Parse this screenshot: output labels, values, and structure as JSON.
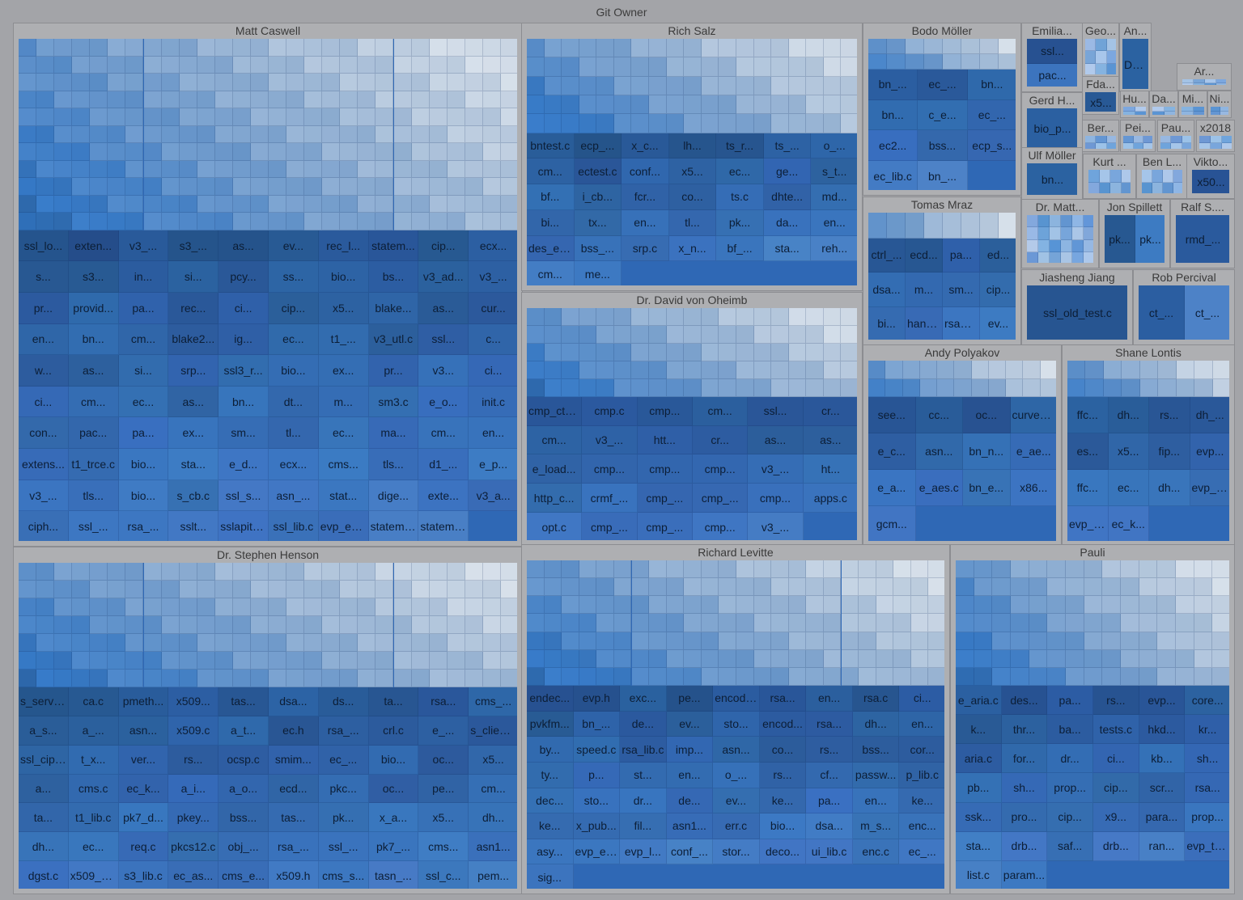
{
  "chart_data": {
    "type": "treemap",
    "title": "Git Owner",
    "groups": [
      {
        "name": "Matt Caswell",
        "files": [
          "ssl_lo...",
          "exten...",
          "v3_...",
          "s3_...",
          "as...",
          "ev...",
          "rec_l...",
          "statem...",
          "cip...",
          "ecx...",
          "s...",
          "s3...",
          "in...",
          "si...",
          "pcy...",
          "ss...",
          "bio...",
          "bs...",
          "v3_ad...",
          "v3_...",
          "pr...",
          "provid...",
          "pa...",
          "rec...",
          "ci...",
          "cip...",
          "x5...",
          "blake...",
          "as...",
          "cur...",
          "en...",
          "bn...",
          "cm...",
          "blake2...",
          "ig...",
          "ec...",
          "t1_...",
          "v3_utl.c",
          "ssl...",
          "c...",
          "w...",
          "as...",
          "si...",
          "srp...",
          "ssl3_r...",
          "bio...",
          "ex...",
          "pr...",
          "v3...",
          "ci...",
          "ci...",
          "cm...",
          "ec...",
          "as...",
          "bn...",
          "dt...",
          "m...",
          "sm3.c",
          "e_o...",
          "init.c",
          "con...",
          "pac...",
          "pa...",
          "ex...",
          "sm...",
          "tl...",
          "ec...",
          "ma...",
          "cm...",
          "en...",
          "extens...",
          "t1_trce.c",
          "bio...",
          "sta...",
          "e_d...",
          "ecx...",
          "cms...",
          "tls...",
          "d1_...",
          "e_p...",
          "v3_...",
          "tls...",
          "bio...",
          "s_cb.c",
          "ssl_s...",
          "asn_...",
          "stat...",
          "dige...",
          "exte...",
          "v3_a...",
          "ciph...",
          "ssl_...",
          "rsa_...",
          "sslt...",
          "sslapitest.c",
          "ssl_lib.c",
          "evp_extra...",
          "statem_...",
          "statem_..."
        ]
      },
      {
        "name": "Rich Salz",
        "files": [
          "bntest.c",
          "ecp_...",
          "x_c...",
          "lh...",
          "ts_r...",
          "ts_...",
          "o_...",
          "cm...",
          "ectest.c",
          "conf...",
          "x5...",
          "ec...",
          "ge...",
          "s_t...",
          "bf...",
          "i_cb...",
          "fcr...",
          "co...",
          "ts.c",
          "dhte...",
          "md...",
          "bi...",
          "tx...",
          "en...",
          "tl...",
          "pk...",
          "da...",
          "en...",
          "des_en...",
          "bss_...",
          "srp.c",
          "x_n...",
          "bf_...",
          "sta...",
          "reh...",
          "cm...",
          "me..."
        ]
      },
      {
        "name": "Dr. David von Oheimb",
        "files": [
          "cmp_ctx_test.c",
          "cmp.c",
          "cmp...",
          "cm...",
          "ssl...",
          "cr...",
          "cm...",
          "v3_...",
          "htt...",
          "cr...",
          "as...",
          "as...",
          "e_load...",
          "cmp...",
          "cmp...",
          "cmp...",
          "v3_...",
          "ht...",
          "http_c...",
          "crmf_...",
          "cmp_...",
          "cmp_...",
          "cmp...",
          "apps.c",
          "opt.c",
          "cmp_...",
          "cmp_...",
          "cmp...",
          "v3_..."
        ]
      },
      {
        "name": "Bodo Möller",
        "files": [
          "bn_...",
          "ec_...",
          "bn...",
          "bn...",
          "c_e...",
          "ec_...",
          "ec2...",
          "bss...",
          "ecp_s...",
          "ec_lib.c",
          "bn_..."
        ]
      },
      {
        "name": "Emilia...",
        "files": [
          "ssl...",
          "pac..."
        ]
      },
      {
        "name": "Geo...",
        "files": []
      },
      {
        "name": "An...",
        "files": [
          "Da..."
        ]
      },
      {
        "name": "Ar...",
        "files": []
      },
      {
        "name": "Fda...",
        "files": [
          "x5..."
        ]
      },
      {
        "name": "Gerd H...",
        "files": [
          "bio_p..."
        ]
      },
      {
        "name": "Hu...",
        "files": []
      },
      {
        "name": "Da...",
        "files": []
      },
      {
        "name": "Mi...",
        "files": []
      },
      {
        "name": "Ni...",
        "files": []
      },
      {
        "name": "Ber...",
        "files": []
      },
      {
        "name": "Pei...",
        "files": []
      },
      {
        "name": "Pau...",
        "files": []
      },
      {
        "name": "x2018",
        "files": []
      },
      {
        "name": "Ulf Möller",
        "files": [
          "bn..."
        ]
      },
      {
        "name": "Kurt ...",
        "files": []
      },
      {
        "name": "Ben L...",
        "files": []
      },
      {
        "name": "Vikto...",
        "files": [
          "x50..."
        ]
      },
      {
        "name": "Tomas Mraz",
        "files": [
          "ctrl_...",
          "ecd...",
          "pa...",
          "ed...",
          "dsa...",
          "m...",
          "sm...",
          "cip...",
          "bi...",
          "hands...",
          "rsa_sig.c",
          "ev..."
        ]
      },
      {
        "name": "Dr. Matt...",
        "files": []
      },
      {
        "name": "Jon Spillett",
        "files": [
          "pk...",
          "pk..."
        ]
      },
      {
        "name": "Ralf S....",
        "files": [
          "rmd_..."
        ]
      },
      {
        "name": "Jiasheng Jiang",
        "files": [
          "ssl_old_test.c"
        ]
      },
      {
        "name": "Rob Percival",
        "files": [
          "ct_...",
          "ct_..."
        ]
      },
      {
        "name": "Andy Polyakov",
        "files": [
          "see...",
          "cc...",
          "oc...",
          "curve25...",
          "e_c...",
          "asn...",
          "bn_n...",
          "e_ae...",
          "e_a...",
          "e_aes.c",
          "bn_e...",
          "x86...",
          "gcm..."
        ]
      },
      {
        "name": "Shane Lontis",
        "files": [
          "ffc...",
          "dh...",
          "rs...",
          "dh_...",
          "es...",
          "x5...",
          "fip...",
          "evp...",
          "ffc...",
          "ec...",
          "dh...",
          "evp_kd...",
          "evp_p...",
          "ec_k..."
        ]
      },
      {
        "name": "Dr. Stephen Henson",
        "files": [
          "s_server.c",
          "ca.c",
          "pmeth...",
          "x509...",
          "tas...",
          "dsa...",
          "ds...",
          "ta...",
          "rsa...",
          "cms_...",
          "a_s...",
          "a_...",
          "asn...",
          "x509.c",
          "a_t...",
          "ec.h",
          "rsa_...",
          "crl.c",
          "e_...",
          "s_client.c",
          "ssl_ciph.c",
          "t_x...",
          "ver...",
          "rs...",
          "ocsp.c",
          "smim...",
          "ec_...",
          "bio...",
          "oc...",
          "x5...",
          "a...",
          "cms.c",
          "ec_k...",
          "a_i...",
          "a_o...",
          "ecd...",
          "pkc...",
          "oc...",
          "pe...",
          "cm...",
          "ta...",
          "t1_lib.c",
          "pk7_d...",
          "pkey...",
          "bss...",
          "tas...",
          "pk...",
          "x_a...",
          "x5...",
          "dh...",
          "dh...",
          "ec...",
          "req.c",
          "pkcs12.c",
          "obj_...",
          "rsa_...",
          "ssl_...",
          "pk7_...",
          "cms...",
          "asn1...",
          "dgst.c",
          "x509_vfy.c",
          "s3_lib.c",
          "ec_as...",
          "cms_e...",
          "x509.h",
          "cms_s...",
          "tasn_...",
          "ssl_c...",
          "pem..."
        ]
      },
      {
        "name": "Richard Levitte",
        "files": [
          "endec...",
          "evp.h",
          "exc...",
          "pe...",
          "encode_...",
          "rsa...",
          "en...",
          "rsa.c",
          "ci...",
          "pvkfm...",
          "bn_...",
          "de...",
          "ev...",
          "sto...",
          "encod...",
          "rsa...",
          "dh...",
          "en...",
          "by...",
          "speed.c",
          "rsa_lib.c",
          "imp...",
          "asn...",
          "co...",
          "rs...",
          "bss...",
          "cor...",
          "ty...",
          "p...",
          "st...",
          "en...",
          "o_...",
          "rs...",
          "cf...",
          "passw...",
          "p_lib.c",
          "dec...",
          "sto...",
          "dr...",
          "de...",
          "ev...",
          "ke...",
          "pa...",
          "en...",
          "ke...",
          "ke...",
          "x_pub...",
          "fil...",
          "asn1...",
          "err.c",
          "bio...",
          "dsa...",
          "m_s...",
          "enc...",
          "asy...",
          "evp_enc.c",
          "evp_l...",
          "conf_...",
          "stor...",
          "deco...",
          "ui_lib.c",
          "enc.c",
          "ec_...",
          "sig..."
        ]
      },
      {
        "name": "Pauli",
        "files": [
          "e_aria.c",
          "des...",
          "pa...",
          "rs...",
          "evp...",
          "core...",
          "k...",
          "thr...",
          "ba...",
          "tests.c",
          "hkd...",
          "kr...",
          "aria.c",
          "for...",
          "dr...",
          "ci...",
          "kb...",
          "sh...",
          "pb...",
          "sh...",
          "prop...",
          "cip...",
          "scr...",
          "rsa...",
          "ssk...",
          "pro...",
          "cip...",
          "x9...",
          "para...",
          "prop...",
          "sta...",
          "drb...",
          "saf...",
          "drb...",
          "ran...",
          "evp_test.c",
          "list.c",
          "param..."
        ]
      }
    ]
  }
}
